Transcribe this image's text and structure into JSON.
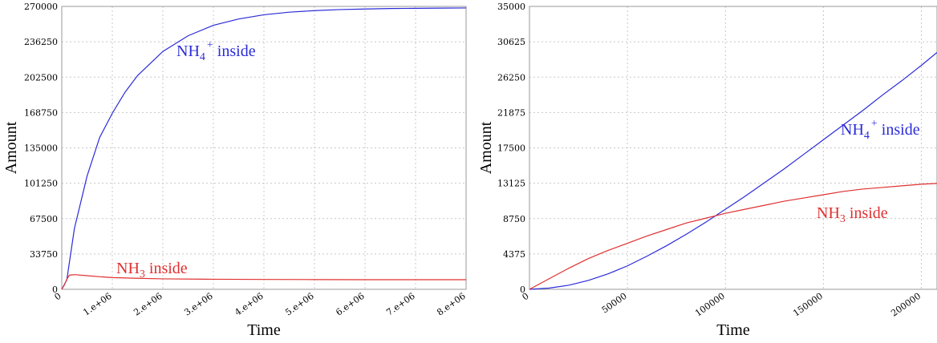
{
  "chart_data": [
    {
      "type": "line",
      "xlabel": "Time",
      "ylabel": "Amount",
      "xlim": [
        0,
        8000000
      ],
      "ylim": [
        0,
        270000
      ],
      "x_ticks": [
        "0",
        "1.e+06",
        "2.e+06",
        "3.e+06",
        "4.e+06",
        "5.e+06",
        "6.e+06",
        "7.e+06",
        "8.e+06"
      ],
      "y_ticks": [
        "0",
        "33750",
        "67500",
        "101250",
        "135000",
        "168750",
        "202500",
        "236250",
        "270000"
      ],
      "grid": true,
      "series": [
        {
          "label_main": "NH",
          "label_sub": "4",
          "label_sup": "+",
          "label_tail": " inside",
          "color": "#2b2bd9",
          "x": [
            0,
            100000,
            250000,
            500000,
            750000,
            1000000,
            1250000,
            1500000,
            2000000,
            2500000,
            3000000,
            3500000,
            4000000,
            4500000,
            5000000,
            5500000,
            6000000,
            6500000,
            7000000,
            7500000,
            8000000
          ],
          "y": [
            0,
            9000,
            58000,
            108000,
            145000,
            168000,
            188000,
            204000,
            227000,
            242000,
            252000,
            258000,
            262000,
            264500,
            266000,
            267000,
            267500,
            268000,
            268200,
            268400,
            268500
          ]
        },
        {
          "label_main": "NH",
          "label_sub": "3",
          "label_sup": "",
          "label_tail": " inside",
          "color": "#e03030",
          "x": [
            0,
            50000,
            100000,
            150000,
            250000,
            500000,
            750000,
            1000000,
            1500000,
            2000000,
            3000000,
            4000000,
            5000000,
            6000000,
            7000000,
            8000000
          ],
          "y": [
            0,
            4000,
            9500,
            13500,
            14000,
            13000,
            12000,
            11200,
            10500,
            10000,
            9600,
            9400,
            9300,
            9200,
            9200,
            9200
          ]
        }
      ]
    },
    {
      "type": "line",
      "xlabel": "Time",
      "ylabel": "Amount",
      "xlim": [
        0,
        208000
      ],
      "ylim": [
        0,
        35000
      ],
      "x_ticks": [
        "0",
        "50000",
        "100000",
        "150000",
        "200000"
      ],
      "x_tick_values": [
        0,
        50000,
        100000,
        150000,
        200000
      ],
      "y_ticks": [
        "0",
        "4375",
        "8750",
        "13125",
        "17500",
        "21875",
        "26250",
        "30625",
        "35000"
      ],
      "grid": true,
      "series": [
        {
          "label_main": "NH",
          "label_sub": "4",
          "label_sup": "+",
          "label_tail": " inside",
          "color": "#2b2bd9",
          "x": [
            0,
            10000,
            20000,
            30000,
            40000,
            50000,
            60000,
            70000,
            80000,
            90000,
            100000,
            110000,
            120000,
            130000,
            140000,
            150000,
            160000,
            170000,
            180000,
            190000,
            200000,
            208000
          ],
          "y": [
            0,
            150,
            500,
            1100,
            1900,
            2900,
            4100,
            5400,
            6800,
            8300,
            9900,
            11500,
            13200,
            14900,
            16700,
            18500,
            20300,
            22100,
            24000,
            25800,
            27700,
            29300
          ]
        },
        {
          "label_main": "NH",
          "label_sub": "3",
          "label_sup": "",
          "label_tail": " inside",
          "color": "#e03030",
          "x": [
            0,
            10000,
            20000,
            30000,
            40000,
            50000,
            60000,
            70000,
            80000,
            90000,
            100000,
            110000,
            120000,
            130000,
            140000,
            150000,
            160000,
            170000,
            180000,
            190000,
            200000,
            208000
          ],
          "y": [
            0,
            1300,
            2600,
            3800,
            4800,
            5700,
            6600,
            7400,
            8200,
            8800,
            9400,
            9900,
            10400,
            10900,
            11300,
            11700,
            12100,
            12400,
            12600,
            12800,
            13000,
            13100
          ]
        }
      ]
    }
  ]
}
